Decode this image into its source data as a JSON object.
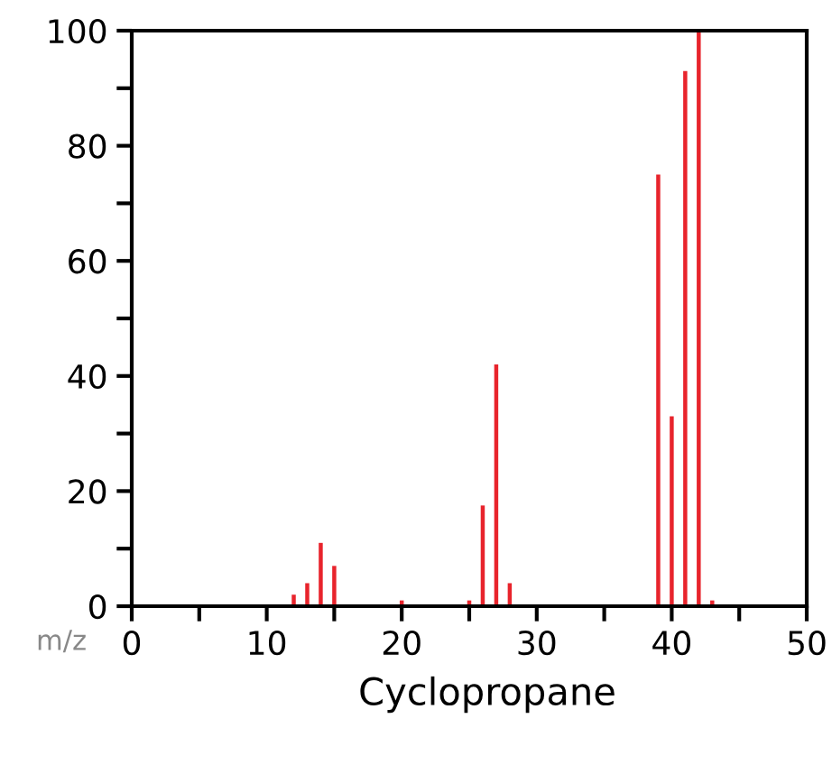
{
  "chart_data": {
    "type": "bar",
    "title": "Cyclopropane",
    "xlabel": "m/z",
    "x": [
      12,
      13,
      14,
      15,
      20,
      25,
      26,
      27,
      28,
      39,
      40,
      41,
      42,
      43
    ],
    "values": [
      2,
      4,
      11,
      7,
      1,
      1,
      17.5,
      42,
      4,
      75,
      33,
      93,
      100,
      1
    ],
    "color": "#e8242c",
    "xlim": [
      0,
      50
    ],
    "ylim": [
      0,
      100
    ],
    "xticks": [
      0,
      {
        "value": 5,
        "label": null
      },
      10,
      {
        "value": 15,
        "label": null
      },
      20,
      {
        "value": 25,
        "label": null
      },
      30,
      {
        "value": 35,
        "label": null
      },
      40,
      {
        "value": 45,
        "label": null
      },
      50
    ],
    "yticks": [
      0,
      {
        "value": 10,
        "label": null
      },
      20,
      {
        "value": 30,
        "label": null
      },
      40,
      {
        "value": 50,
        "label": null
      },
      60,
      {
        "value": 70,
        "label": null
      },
      80,
      {
        "value": 90,
        "label": null
      },
      100
    ],
    "grid": false
  }
}
